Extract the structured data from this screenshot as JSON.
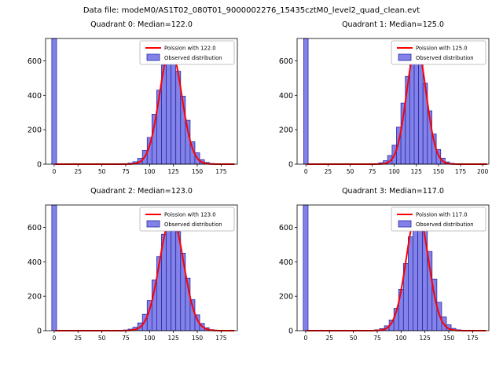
{
  "figure_title": "Data file: modeM0/AS1T02_080T01_9000002276_15435cztM0_level2_quad_clean.evt",
  "colors": {
    "bar_fill": "#8282e8",
    "bar_edge": "#2929a8",
    "curve": "#ff0000",
    "legend_border": "#b0b0b0",
    "axis": "#000000"
  },
  "chart_data": [
    {
      "type": "histogram",
      "title": "Quadrant 0: Median=122.0",
      "legend": [
        "Poission with 122.0",
        "Observed distribution"
      ],
      "xlim": [
        -9,
        192
      ],
      "ylim": [
        0,
        730
      ],
      "xticks": [
        0,
        25,
        50,
        75,
        100,
        125,
        150,
        175
      ],
      "yticks": [
        0,
        200,
        400,
        600
      ],
      "bin_width": 5,
      "zero_bin": {
        "x": 0,
        "count": 745
      },
      "bin_centers": [
        70,
        75,
        80,
        85,
        90,
        95,
        100,
        105,
        110,
        115,
        120,
        125,
        130,
        135,
        140,
        145,
        150,
        155,
        160,
        165,
        170,
        175,
        180,
        185
      ],
      "counts": [
        1,
        3,
        6,
        14,
        34,
        80,
        155,
        290,
        430,
        575,
        655,
        645,
        540,
        395,
        255,
        130,
        66,
        26,
        10,
        4,
        2,
        1,
        0,
        0
      ],
      "poisson_fit": {
        "mu": 122,
        "sigma": 11.5,
        "amplitude": 672
      }
    },
    {
      "type": "histogram",
      "title": "Quadrant 1: Median=125.0",
      "legend": [
        "Poission with 125.0",
        "Observed distribution"
      ],
      "xlim": [
        -10,
        207
      ],
      "ylim": [
        0,
        730
      ],
      "xticks": [
        0,
        25,
        50,
        75,
        100,
        125,
        150,
        175,
        200
      ],
      "yticks": [
        0,
        200,
        400,
        600
      ],
      "bin_width": 5,
      "zero_bin": {
        "x": 0,
        "count": 745
      },
      "bin_centers": [
        70,
        75,
        80,
        85,
        90,
        95,
        100,
        105,
        110,
        115,
        120,
        125,
        130,
        135,
        140,
        145,
        150,
        155,
        160,
        165,
        170,
        175,
        180,
        185
      ],
      "counts": [
        0,
        1,
        3,
        8,
        20,
        50,
        110,
        215,
        355,
        510,
        635,
        670,
        610,
        470,
        310,
        175,
        85,
        35,
        13,
        5,
        2,
        1,
        0,
        0
      ],
      "poisson_fit": {
        "mu": 125,
        "sigma": 11,
        "amplitude": 688
      }
    },
    {
      "type": "histogram",
      "title": "Quadrant 2: Median=123.0",
      "legend": [
        "Poission with 123.0",
        "Observed distribution"
      ],
      "xlim": [
        -9,
        192
      ],
      "ylim": [
        0,
        730
      ],
      "xticks": [
        0,
        25,
        50,
        75,
        100,
        125,
        150,
        175
      ],
      "yticks": [
        0,
        200,
        400,
        600
      ],
      "bin_width": 5,
      "zero_bin": {
        "x": 0,
        "count": 745
      },
      "bin_centers": [
        70,
        75,
        80,
        85,
        90,
        95,
        100,
        105,
        110,
        115,
        120,
        125,
        130,
        135,
        140,
        145,
        150,
        155,
        160,
        165,
        170,
        175,
        180,
        185
      ],
      "counts": [
        1,
        4,
        9,
        20,
        45,
        95,
        175,
        295,
        430,
        560,
        640,
        648,
        575,
        450,
        305,
        180,
        92,
        42,
        17,
        6,
        2,
        1,
        0,
        0
      ],
      "poisson_fit": {
        "mu": 123,
        "sigma": 12.5,
        "amplitude": 662
      }
    },
    {
      "type": "histogram",
      "title": "Quadrant 3: Median=117.0",
      "legend": [
        "Poission with 117.0",
        "Observed distribution"
      ],
      "xlim": [
        -9,
        192
      ],
      "ylim": [
        0,
        730
      ],
      "xticks": [
        0,
        25,
        50,
        75,
        100,
        125,
        150,
        175
      ],
      "yticks": [
        0,
        200,
        400,
        600
      ],
      "bin_width": 5,
      "zero_bin": {
        "x": 0,
        "count": 745
      },
      "bin_centers": [
        70,
        75,
        80,
        85,
        90,
        95,
        100,
        105,
        110,
        115,
        120,
        125,
        130,
        135,
        140,
        145,
        150,
        155,
        160,
        165,
        170,
        175,
        180,
        185
      ],
      "counts": [
        2,
        5,
        12,
        28,
        62,
        130,
        240,
        390,
        545,
        660,
        678,
        600,
        460,
        300,
        165,
        80,
        34,
        13,
        5,
        2,
        1,
        0,
        0,
        0
      ],
      "poisson_fit": {
        "mu": 117,
        "sigma": 11.5,
        "amplitude": 695
      }
    }
  ]
}
